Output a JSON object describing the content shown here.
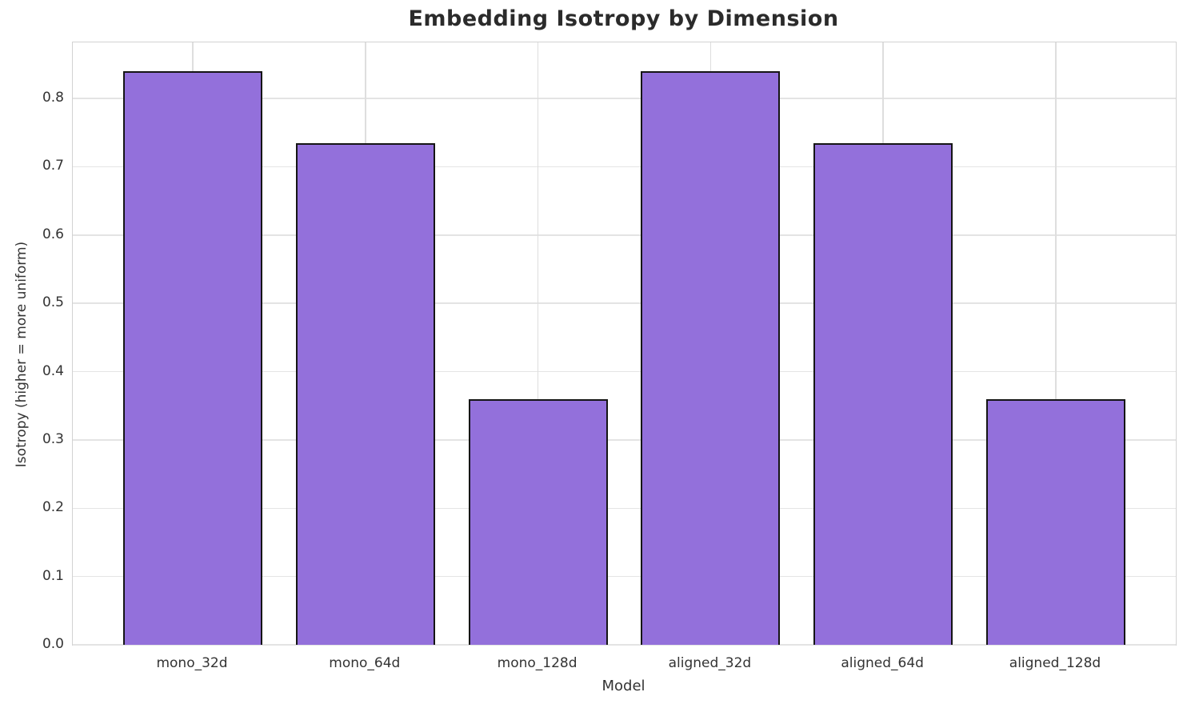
{
  "chart_data": {
    "type": "bar",
    "title": "Embedding Isotropy by Dimension",
    "xlabel": "Model",
    "ylabel": "Isotropy (higher = more uniform)",
    "categories": [
      "mono_32d",
      "mono_64d",
      "mono_128d",
      "aligned_32d",
      "aligned_64d",
      "aligned_128d"
    ],
    "values": [
      0.84,
      0.735,
      0.36,
      0.84,
      0.735,
      0.36
    ],
    "yticks": [
      "0.0",
      "0.1",
      "0.2",
      "0.3",
      "0.4",
      "0.5",
      "0.6",
      "0.7",
      "0.8"
    ],
    "ylim": [
      0,
      0.882
    ],
    "grid": true,
    "legend": null,
    "colors": {
      "bar_fill": "#9370DB",
      "bar_edge": "#151515",
      "grid_h": "#e4e4e4",
      "grid_v": "#dedede",
      "spine": "#d2d2d2",
      "tick_text": "#333333",
      "title_text": "#2b2b2b"
    }
  }
}
